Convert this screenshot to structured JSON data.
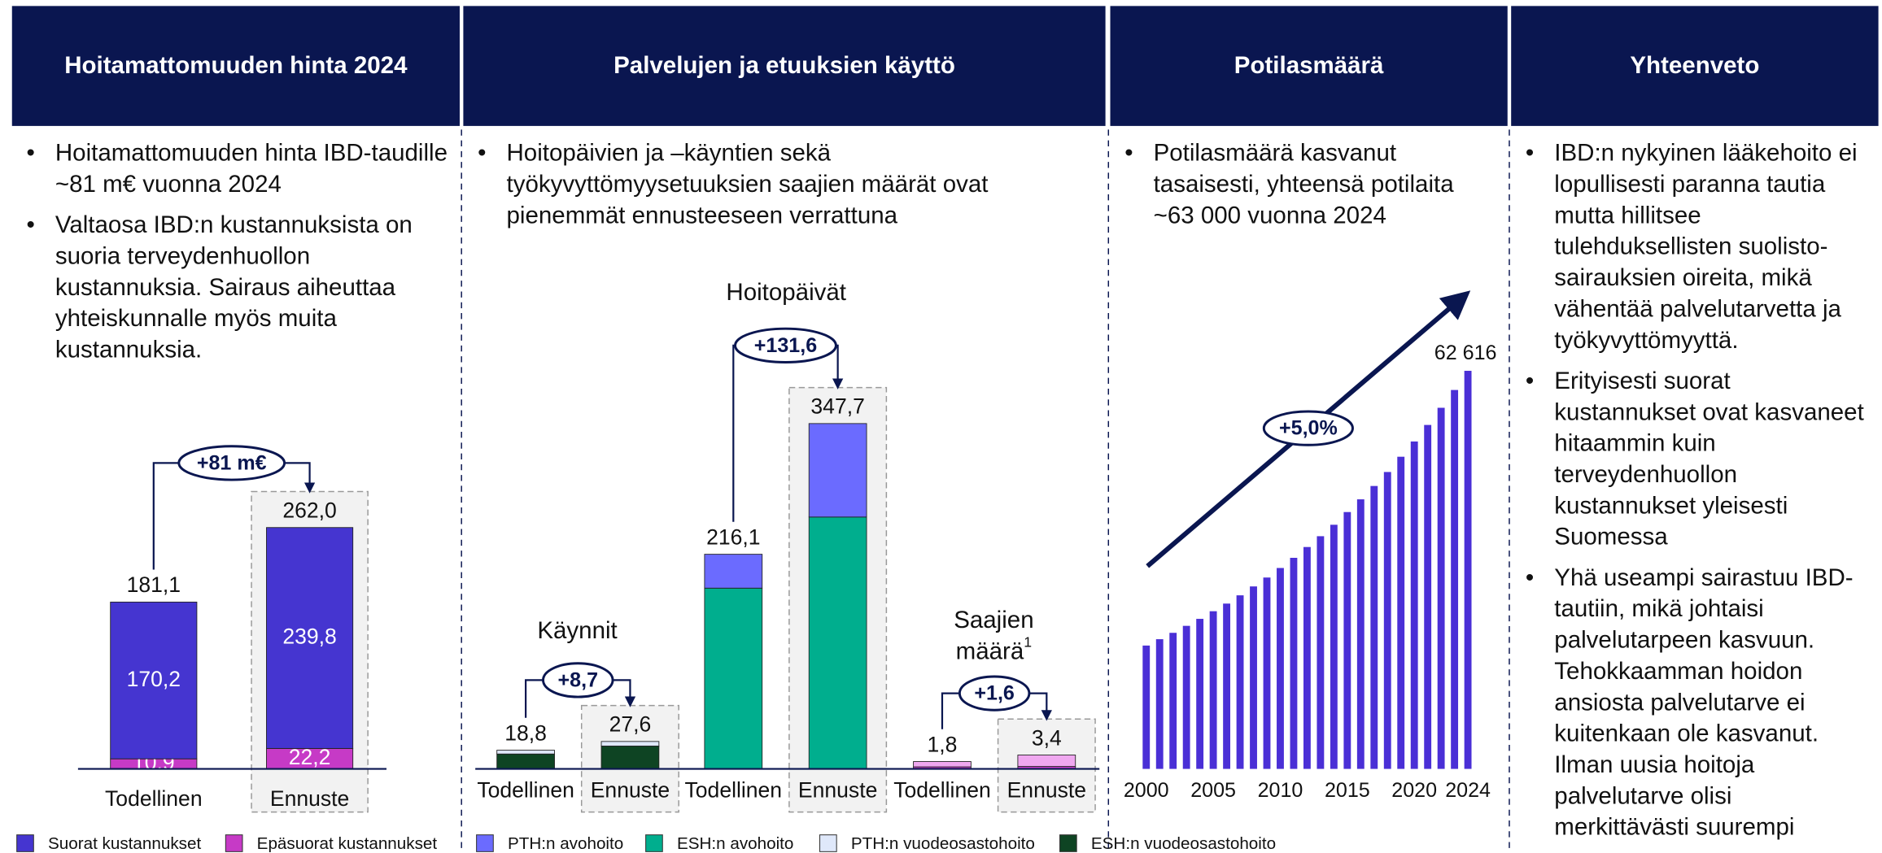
{
  "panels": [
    {
      "title": "Hoitamattomuuden hinta 2024",
      "bullets": [
        "Hoitamattomuuden hinta IBD-taudille ~81 m€ vuonna 2024",
        "Valtaosa IBD:n kustannuksista on suoria terveydenhuollon kustannuksia. Sairaus aiheuttaa yhteiskunnalle myös muita kustannuksia."
      ]
    },
    {
      "title": "Palvelujen ja etuuksien käyttö",
      "bullets": [
        "Hoitopäivien ja –käyntien sekä työkyvyttömyysetuuksien saajien määrät ovat pienemmät ennusteeseen verrattuna"
      ]
    },
    {
      "title": "Potilasmäärä",
      "bullets": [
        "Potilasmäärä kasvanut tasaisesti, yhteensä potilaita ~63 000 vuonna 2024"
      ]
    },
    {
      "title": "Yhteenveto",
      "bullets": [
        "IBD:n nykyinen lääkehoito ei lopullisesti paranna tautia mutta hillitsee tulehduksellisten suolisto-sairauksien oireita, mikä vähentää palvelutarvetta ja työkyvyttömyyttä.",
        "Erityisesti suorat kustannukset ovat kasvaneet hitaammin kuin terveydenhuollon kustannukset yleisesti Suomessa",
        "Yhä useampi sairastuu IBD-tautiin, mikä johtaisi palvelutarpeen kasvuun. Tehokkaamman hoidon ansiosta palvelutarve ei kuitenkaan ole kasvanut. Ilman uusia hoitoja palvelutarve olisi merkittävästi suurempi"
      ]
    }
  ],
  "chart_data": [
    {
      "type": "stacked-bar",
      "categories": [
        "Todellinen",
        "Ennuste"
      ],
      "series": [
        {
          "name": "Suorat kustannukset",
          "color": "#4535d0",
          "values": [
            170.2,
            239.8
          ],
          "value_labels": [
            "170,2",
            "239,8"
          ]
        },
        {
          "name": "Epäsuorat kustannukset",
          "color": "#c63ac6",
          "values": [
            10.9,
            22.2
          ],
          "value_labels": [
            "10,9",
            "22,2"
          ]
        }
      ],
      "totals": [
        181.1,
        262.0
      ],
      "total_labels": [
        "181,1",
        "262,0"
      ],
      "annotation": "+81 m€"
    },
    {
      "type": "grouped-stacked-bar",
      "groups": [
        {
          "title_lines": [
            "Käynnit"
          ],
          "annotation": "+8,7"
        },
        {
          "title_lines": [
            "Hoitopäivät"
          ],
          "annotation": "+131,6"
        },
        {
          "title_lines": [
            "Saajien",
            "määrä"
          ],
          "note": "1",
          "annotation": "+1,6"
        }
      ],
      "categories": [
        "Todellinen",
        "Ennuste",
        "Todellinen",
        "Ennuste",
        "Todellinen",
        "Ennuste"
      ],
      "series": [
        {
          "name": "PTH:n avohoito",
          "color": "#6b6bff",
          "values": [
            null,
            null,
            34.1,
            94.1,
            null,
            null
          ]
        },
        {
          "name": "ESH:n avohoito",
          "color": "#00ae8e",
          "values": [
            null,
            null,
            182.0,
            253.6,
            null,
            null
          ]
        },
        {
          "name": "PTH:n vuodeosastohoito",
          "color": "#dfe8fa",
          "values": [
            3.8,
            4.6,
            null,
            null,
            null,
            null
          ]
        },
        {
          "name": "ESH:n vuodeosastohoito",
          "color": "#0e4423",
          "values": [
            15.0,
            23.0,
            null,
            null,
            null,
            null
          ]
        },
        {
          "color": "#f0a8f0",
          "values": [
            null,
            null,
            null,
            null,
            1.3,
            2.8
          ]
        },
        {
          "color": "#c63ac6",
          "values": [
            null,
            null,
            null,
            null,
            0.5,
            0.6
          ]
        }
      ],
      "totals": [
        18.8,
        27.6,
        216.1,
        347.7,
        1.8,
        3.4
      ],
      "total_labels": [
        "18,8",
        "27,6",
        "216,1",
        "347,7",
        "1,8",
        "3,4"
      ]
    },
    {
      "type": "bar",
      "color": "#4a2fd6",
      "x": [
        2000,
        2001,
        2002,
        2003,
        2004,
        2005,
        2006,
        2007,
        2008,
        2009,
        2010,
        2011,
        2012,
        2013,
        2014,
        2015,
        2016,
        2017,
        2018,
        2019,
        2020,
        2021,
        2022,
        2023,
        2024
      ],
      "values": [
        19400,
        20400,
        21400,
        22500,
        23600,
        24800,
        26000,
        27300,
        28700,
        30100,
        31600,
        33200,
        34900,
        36600,
        38400,
        40400,
        42400,
        44500,
        46700,
        49100,
        51500,
        54100,
        56800,
        59600,
        62616
      ],
      "value_labels": [
        null,
        null,
        null,
        null,
        null,
        null,
        null,
        null,
        null,
        null,
        null,
        null,
        null,
        null,
        null,
        null,
        null,
        null,
        null,
        null,
        null,
        null,
        null,
        null,
        "62 616"
      ],
      "xticks": [
        2000,
        2005,
        2010,
        2015,
        2020,
        2024
      ],
      "annotation": "+5,0%"
    }
  ]
}
